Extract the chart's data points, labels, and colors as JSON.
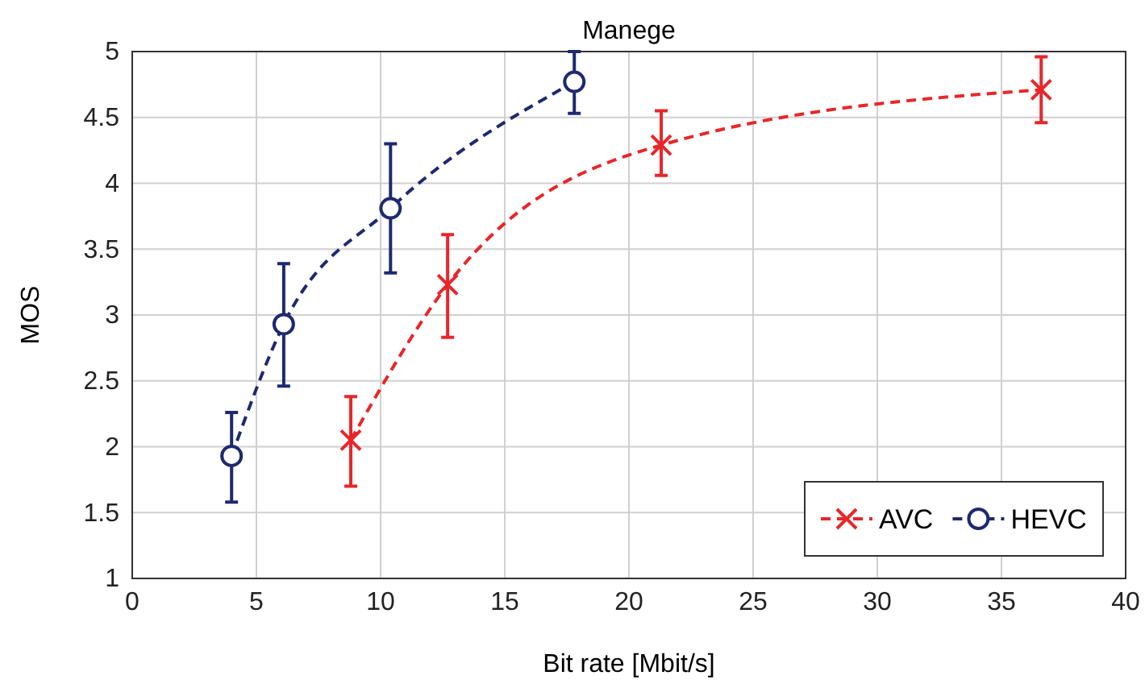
{
  "chart_data": {
    "type": "line",
    "title": "Manege",
    "xlabel": "Bit rate [Mbit/s]",
    "ylabel": "MOS",
    "xlim": [
      0,
      40
    ],
    "xticks": [
      0,
      5,
      10,
      15,
      20,
      25,
      30,
      35,
      40
    ],
    "ylim": [
      1,
      5
    ],
    "yticks": [
      1,
      1.5,
      2,
      2.5,
      3,
      3.5,
      4,
      4.5,
      5
    ],
    "grid": true,
    "legend": "bottom right",
    "line_style": "dashed",
    "series": [
      {
        "name": "AVC",
        "color": "#e8262a",
        "marker": "cross",
        "x": [
          8.8,
          12.7,
          21.3,
          36.6
        ],
        "values": [
          2.05,
          3.23,
          4.29,
          4.71
        ],
        "errors": [
          [
            1.7,
            2.38
          ],
          [
            2.83,
            3.61
          ],
          [
            4.06,
            4.55
          ],
          [
            4.46,
            4.96
          ]
        ]
      },
      {
        "name": "HEVC",
        "color": "#1e2a6e",
        "marker": "circle",
        "x": [
          4,
          6.1,
          10.4,
          17.8
        ],
        "values": [
          1.93,
          2.93,
          3.81,
          4.77
        ],
        "errors": [
          [
            1.58,
            2.26
          ],
          [
            2.46,
            3.39
          ],
          [
            3.32,
            4.3
          ],
          [
            4.53,
            5
          ]
        ]
      }
    ]
  }
}
